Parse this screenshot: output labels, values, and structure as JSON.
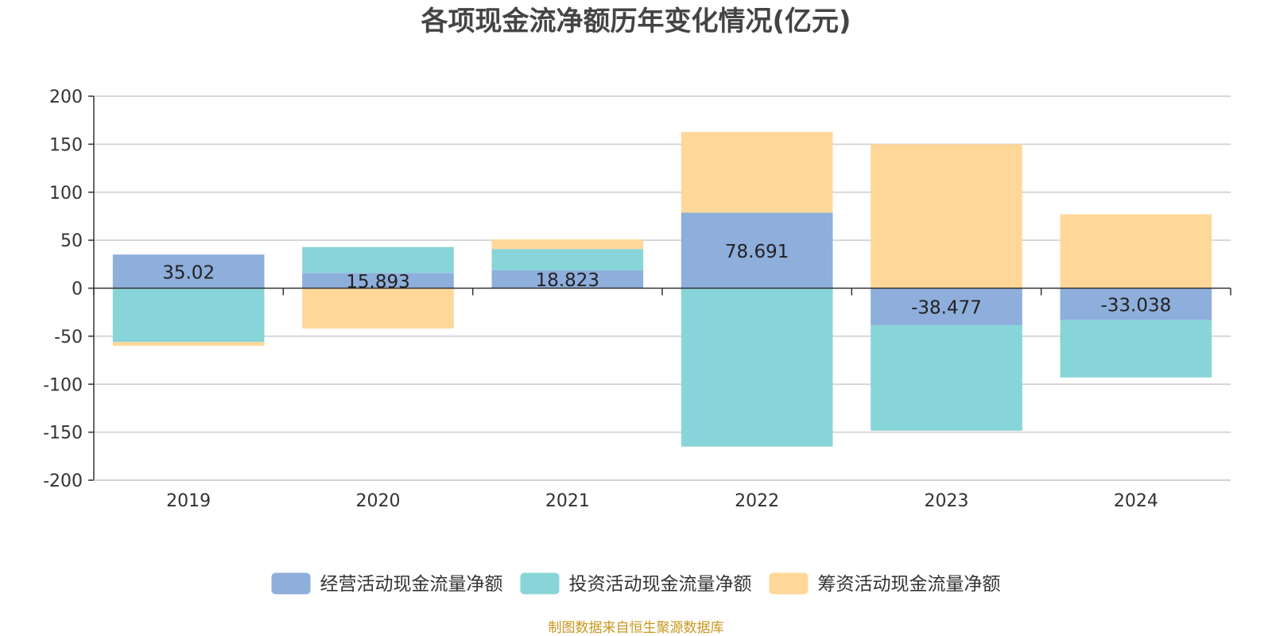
{
  "chart_data": {
    "type": "bar",
    "stacked": true,
    "title": "各项现金流净额历年变化情况(亿元)",
    "xlabel": "",
    "ylabel": "",
    "categories": [
      "2019",
      "2020",
      "2021",
      "2022",
      "2023",
      "2024"
    ],
    "ylim": [
      -200,
      200
    ],
    "yticks": [
      200,
      150,
      100,
      50,
      0,
      -50,
      -100,
      -150,
      -200
    ],
    "grid": true,
    "legend_position": "bottom",
    "series": [
      {
        "name": "经营活动现金流量净额",
        "color": "#8eaedb",
        "values": [
          35.02,
          15.893,
          18.823,
          78.691,
          -38.477,
          -33.038
        ],
        "data_labels": [
          "35.02",
          "15.893",
          "18.823",
          "78.691",
          "-38.477",
          "-33.038"
        ]
      },
      {
        "name": "投资活动现金流量净额",
        "color": "#88d5d9",
        "values": [
          -56,
          27,
          22,
          -165,
          -110,
          -60
        ]
      },
      {
        "name": "筹资活动现金流量净额",
        "color": "#ffd899",
        "values": [
          -4,
          -42,
          10,
          84,
          150,
          77
        ]
      }
    ]
  },
  "source_note": "制图数据来自恒生聚源数据库"
}
